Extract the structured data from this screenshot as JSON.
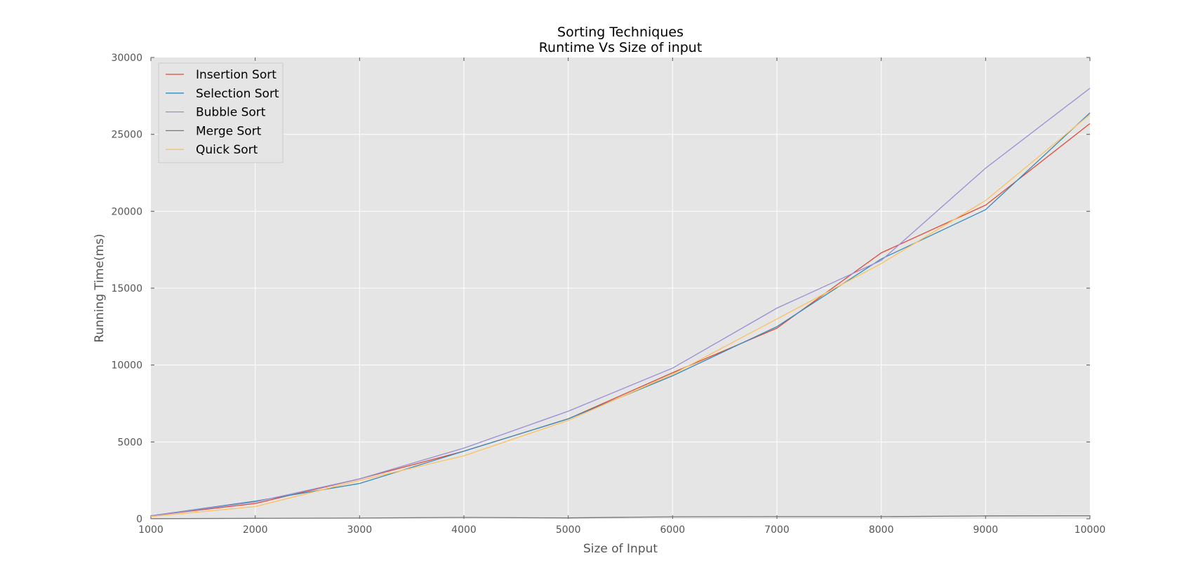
{
  "chart_data": {
    "type": "line",
    "title_lines": [
      "Sorting Techniques",
      "Runtime Vs Size of input"
    ],
    "xlabel": "Size of Input",
    "ylabel": "Running Time(ms)",
    "xlim": [
      1000,
      10000
    ],
    "ylim": [
      0,
      30000
    ],
    "xticks": [
      1000,
      2000,
      3000,
      4000,
      5000,
      6000,
      7000,
      8000,
      9000,
      10000
    ],
    "yticks": [
      0,
      5000,
      10000,
      15000,
      20000,
      25000,
      30000
    ],
    "grid": true,
    "legend_position": "top-left",
    "x": [
      1000,
      2000,
      3000,
      4000,
      5000,
      6000,
      7000,
      8000,
      9000,
      10000
    ],
    "series": [
      {
        "name": "Insertion Sort",
        "color": "#e24a33",
        "values": [
          200,
          1000,
          2600,
          4400,
          6500,
          9500,
          12400,
          17300,
          20400,
          25700
        ]
      },
      {
        "name": "Selection Sort",
        "color": "#348abd",
        "values": [
          200,
          1150,
          2300,
          4400,
          6500,
          9300,
          12500,
          16900,
          20100,
          26400
        ]
      },
      {
        "name": "Bubble Sort",
        "color": "#988ed5",
        "values": [
          200,
          1100,
          2600,
          4600,
          7000,
          9800,
          13700,
          16800,
          22800,
          28000
        ]
      },
      {
        "name": "Merge Sort",
        "color": "#777777",
        "values": [
          10,
          30,
          50,
          90,
          60,
          130,
          140,
          140,
          190,
          200
        ]
      },
      {
        "name": "Quick Sort",
        "color": "#fbc15e",
        "values": [
          150,
          800,
          2500,
          4100,
          6400,
          9400,
          13000,
          16600,
          20700,
          26300
        ]
      }
    ]
  }
}
